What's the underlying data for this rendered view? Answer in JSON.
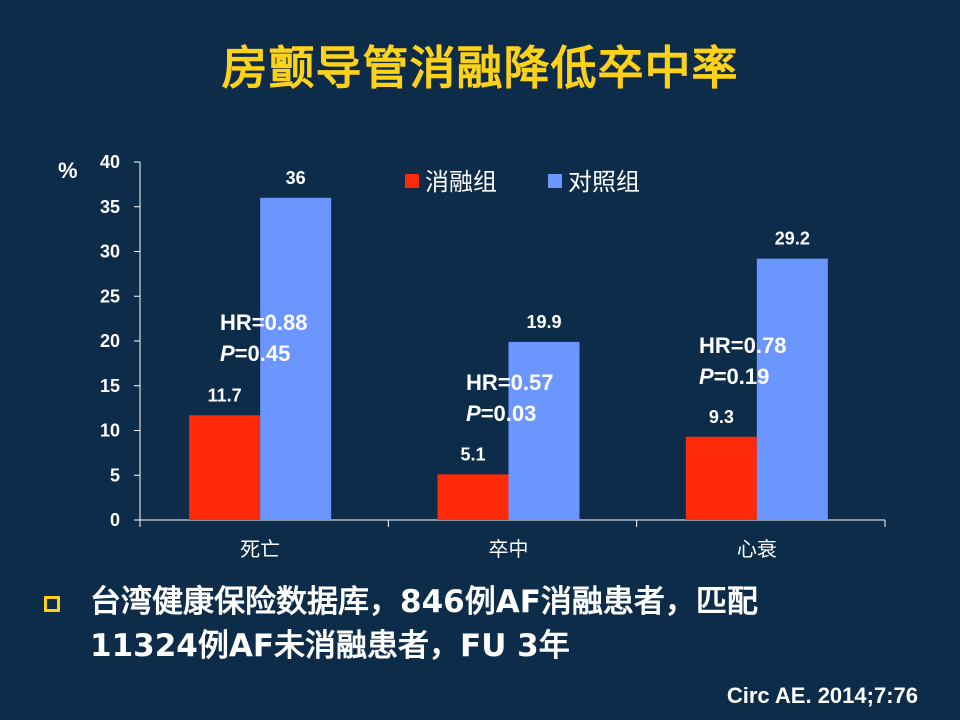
{
  "slide": {
    "title": "房颤导管消融降低卒中率",
    "bullet": {
      "line1": "台湾健康保险数据库，846例AF消融患者，匹配",
      "line2": "11324例AF未消融患者，FU 3年"
    },
    "citation": "Circ AE. 2014;7:76"
  },
  "colors": {
    "background": "#0d2c4a",
    "title": "#ffd21a",
    "ablation": "#ff2a0a",
    "control": "#6b96ff",
    "text": "#ffffff"
  },
  "chart_data": {
    "type": "bar",
    "ylabel": "%",
    "ylim": [
      0,
      40
    ],
    "yticks": [
      0,
      5,
      10,
      15,
      20,
      25,
      30,
      35,
      40
    ],
    "categories": [
      "死亡",
      "卒中",
      "心衰"
    ],
    "series": [
      {
        "name": "消融组",
        "values": [
          11.7,
          5.1,
          9.3
        ],
        "labels": [
          "11.7",
          "5.1",
          "9.3"
        ]
      },
      {
        "name": "对照组",
        "values": [
          36,
          19.9,
          29.2
        ],
        "labels": [
          "36",
          "19.9",
          "29.2"
        ]
      }
    ],
    "legend_position": "top-center",
    "grid": false,
    "annotations": [
      {
        "category": "死亡",
        "hr": "HR=0.88",
        "p_italic": "P",
        "p_rest": "=0.45"
      },
      {
        "category": "卒中",
        "hr": "HR=0.57",
        "p_italic": "P",
        "p_rest": "=0.03"
      },
      {
        "category": "心衰",
        "hr": "HR=0.78",
        "p_italic": "P",
        "p_rest": "=0.19"
      }
    ]
  }
}
